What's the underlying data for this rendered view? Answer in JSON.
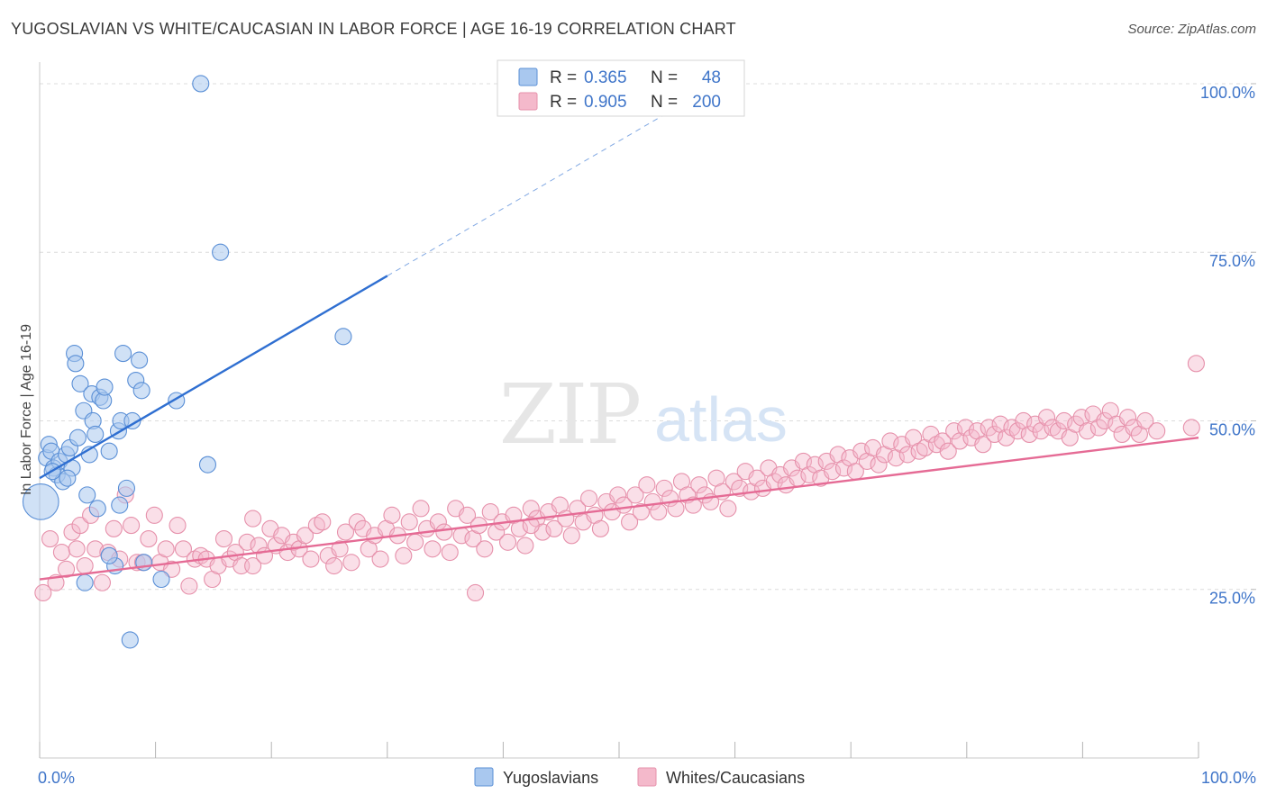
{
  "title": "YUGOSLAVIAN VS WHITE/CAUCASIAN IN LABOR FORCE | AGE 16-19 CORRELATION CHART",
  "source": "Source: ZipAtlas.com",
  "watermark": {
    "zip": "ZIP",
    "atlas": "atlas"
  },
  "colors": {
    "blue_fill": "#a9c8ef",
    "blue_stroke": "#5a8fd6",
    "blue_line": "#2f6fd1",
    "pink_fill": "#f4b9cb",
    "pink_stroke": "#e691ab",
    "pink_line": "#e56b95",
    "value_text": "#3f75c9",
    "grid": "#dcdcdc"
  },
  "legend_stats": [
    {
      "r_label": "R =",
      "r_value": "0.365",
      "n_label": "N =",
      "n_value": "48",
      "series": "Yugoslavians"
    },
    {
      "r_label": "R =",
      "r_value": "0.905",
      "n_label": "N =",
      "n_value": "200",
      "series": "Whites/Caucasians"
    }
  ],
  "chart_data": {
    "type": "scatter",
    "title": "YUGOSLAVIAN VS WHITE/CAUCASIAN IN LABOR FORCE | AGE 16-19 CORRELATION CHART",
    "xlabel": "",
    "ylabel": "In Labor Force | Age 16-19",
    "xlim": [
      0,
      100
    ],
    "ylim": [
      0,
      104
    ],
    "x_tick_labels": [
      {
        "value": 0,
        "label": "0.0%"
      },
      {
        "value": 100,
        "label": "100.0%"
      }
    ],
    "y_tick_labels": [
      {
        "value": 25,
        "label": "25.0%"
      },
      {
        "value": 50,
        "label": "50.0%"
      },
      {
        "value": 75,
        "label": "75.0%"
      },
      {
        "value": 100,
        "label": "100.0%"
      }
    ],
    "grid": true,
    "legend_position": "bottom-center",
    "series": [
      {
        "name": "Yugoslavians",
        "color": "#a9c8ef",
        "trend": {
          "x0": 0,
          "y0": 41.5,
          "x1": 30,
          "y1": 71.5,
          "dashed_to_x": 54
        },
        "points": [
          [
            0.1,
            38,
            22
          ],
          [
            0.6,
            44.5,
            10
          ],
          [
            0.8,
            46.5,
            10
          ],
          [
            1.0,
            45.5,
            10
          ],
          [
            1.2,
            43,
            10
          ],
          [
            1.5,
            42,
            10
          ],
          [
            1.7,
            44,
            10
          ],
          [
            2.0,
            41,
            10
          ],
          [
            2.3,
            45,
            10
          ],
          [
            2.6,
            46,
            10
          ],
          [
            2.8,
            43,
            10
          ],
          [
            3.3,
            47.5,
            10
          ],
          [
            3.5,
            55.5,
            10
          ],
          [
            3.8,
            51.5,
            10
          ],
          [
            4.1,
            39,
            10
          ],
          [
            4.3,
            45,
            10
          ],
          [
            4.5,
            54,
            10
          ],
          [
            4.6,
            50,
            10
          ],
          [
            4.8,
            48,
            10
          ],
          [
            5.2,
            53.5,
            10
          ],
          [
            5.5,
            53,
            10
          ],
          [
            5.6,
            55,
            10
          ],
          [
            6.0,
            45.5,
            10
          ],
          [
            6.5,
            28.5,
            10
          ],
          [
            6.8,
            48.5,
            10
          ],
          [
            6.9,
            37.5,
            10
          ],
          [
            7.0,
            50,
            10
          ],
          [
            7.2,
            60,
            10
          ],
          [
            7.5,
            40,
            10
          ],
          [
            7.8,
            17.5,
            10
          ],
          [
            8.0,
            50,
            10
          ],
          [
            8.3,
            56,
            10
          ],
          [
            8.6,
            59,
            10
          ],
          [
            8.8,
            54.5,
            10
          ],
          [
            9.0,
            29,
            10
          ],
          [
            3.0,
            60,
            10
          ],
          [
            3.1,
            58.5,
            10
          ],
          [
            6.0,
            30,
            10
          ],
          [
            5.0,
            37,
            10
          ],
          [
            3.9,
            26,
            10
          ],
          [
            10.5,
            26.5,
            10
          ],
          [
            11.8,
            53,
            10
          ],
          [
            13.9,
            100,
            10
          ],
          [
            14.5,
            43.5,
            10
          ],
          [
            15.6,
            75,
            10
          ],
          [
            26.2,
            62.5,
            10
          ],
          [
            1.1,
            42.5,
            10
          ],
          [
            2.4,
            41.5,
            10
          ]
        ]
      },
      {
        "name": "Whites/Caucasians",
        "color": "#f4b9cb",
        "trend": {
          "x0": 0,
          "y0": 26.5,
          "x1": 100,
          "y1": 47.5
        },
        "points": [
          [
            0.3,
            24.5
          ],
          [
            0.9,
            32.5
          ],
          [
            1.4,
            26
          ],
          [
            1.9,
            30.5
          ],
          [
            2.3,
            28
          ],
          [
            2.8,
            33.5
          ],
          [
            3.2,
            31
          ],
          [
            3.5,
            34.5
          ],
          [
            3.9,
            28.5
          ],
          [
            4.4,
            36
          ],
          [
            4.8,
            31
          ],
          [
            5.4,
            26
          ],
          [
            5.9,
            30.5
          ],
          [
            6.4,
            34
          ],
          [
            6.9,
            29.5
          ],
          [
            7.4,
            39
          ],
          [
            7.9,
            34.5
          ],
          [
            8.4,
            29
          ],
          [
            8.9,
            29
          ],
          [
            9.4,
            32.5
          ],
          [
            9.9,
            36
          ],
          [
            10.4,
            29
          ],
          [
            10.9,
            31
          ],
          [
            11.4,
            28
          ],
          [
            11.9,
            34.5
          ],
          [
            12.4,
            31
          ],
          [
            12.9,
            25.5
          ],
          [
            13.4,
            29.5
          ],
          [
            13.9,
            30
          ],
          [
            14.4,
            29.5
          ],
          [
            14.9,
            26.5
          ],
          [
            15.4,
            28.5
          ],
          [
            15.9,
            32.5
          ],
          [
            16.4,
            29.5
          ],
          [
            16.9,
            30.5
          ],
          [
            17.4,
            28.5
          ],
          [
            17.9,
            32
          ],
          [
            18.4,
            28.5
          ],
          [
            18.9,
            31.5
          ],
          [
            19.4,
            30
          ],
          [
            19.9,
            34
          ],
          [
            20.4,
            31.5
          ],
          [
            20.9,
            33
          ],
          [
            21.4,
            30.5
          ],
          [
            21.9,
            32
          ],
          [
            22.4,
            31
          ],
          [
            22.9,
            33
          ],
          [
            23.4,
            29.5
          ],
          [
            23.9,
            34.5
          ],
          [
            24.4,
            35
          ],
          [
            24.9,
            30
          ],
          [
            25.4,
            28.5
          ],
          [
            25.9,
            31
          ],
          [
            26.4,
            33.5
          ],
          [
            26.9,
            29
          ],
          [
            27.4,
            35
          ],
          [
            27.9,
            34
          ],
          [
            28.4,
            31
          ],
          [
            28.9,
            33
          ],
          [
            29.4,
            29.5
          ],
          [
            29.9,
            34
          ],
          [
            30.4,
            36
          ],
          [
            30.9,
            33
          ],
          [
            31.4,
            30
          ],
          [
            31.9,
            35
          ],
          [
            32.4,
            32
          ],
          [
            32.9,
            37
          ],
          [
            33.4,
            34
          ],
          [
            33.9,
            31
          ],
          [
            34.4,
            35
          ],
          [
            34.9,
            33.5
          ],
          [
            35.4,
            30.5
          ],
          [
            35.9,
            37
          ],
          [
            36.4,
            33
          ],
          [
            36.9,
            36
          ],
          [
            37.4,
            32.5
          ],
          [
            37.9,
            34.5
          ],
          [
            38.4,
            31
          ],
          [
            38.9,
            36.5
          ],
          [
            39.4,
            33.5
          ],
          [
            39.9,
            35
          ],
          [
            40.4,
            32
          ],
          [
            40.9,
            36
          ],
          [
            41.4,
            34
          ],
          [
            41.9,
            31.5
          ],
          [
            42.4,
            37
          ],
          [
            42.9,
            35.5
          ],
          [
            43.4,
            33.5
          ],
          [
            43.9,
            36.5
          ],
          [
            44.4,
            34
          ],
          [
            44.9,
            37.5
          ],
          [
            45.4,
            35.5
          ],
          [
            45.9,
            33
          ],
          [
            46.4,
            37
          ],
          [
            46.9,
            35
          ],
          [
            47.4,
            38.5
          ],
          [
            47.9,
            36
          ],
          [
            48.4,
            34
          ],
          [
            48.9,
            38
          ],
          [
            49.4,
            36.5
          ],
          [
            49.9,
            39
          ],
          [
            50.4,
            37.5
          ],
          [
            50.9,
            35
          ],
          [
            51.4,
            39
          ],
          [
            51.9,
            36.5
          ],
          [
            52.4,
            40.5
          ],
          [
            52.9,
            38
          ],
          [
            53.4,
            36.5
          ],
          [
            53.9,
            40
          ],
          [
            54.4,
            38.5
          ],
          [
            54.9,
            37
          ],
          [
            55.4,
            41
          ],
          [
            55.9,
            39
          ],
          [
            56.4,
            37.5
          ],
          [
            56.9,
            40.5
          ],
          [
            57.4,
            39
          ],
          [
            57.9,
            38
          ],
          [
            58.4,
            41.5
          ],
          [
            58.9,
            39.5
          ],
          [
            59.4,
            37
          ],
          [
            59.9,
            41
          ],
          [
            60.4,
            40
          ],
          [
            60.9,
            42.5
          ],
          [
            61.4,
            39.5
          ],
          [
            61.9,
            41.5
          ],
          [
            62.4,
            40
          ],
          [
            62.9,
            43
          ],
          [
            63.4,
            41
          ],
          [
            63.9,
            42
          ],
          [
            64.4,
            40.5
          ],
          [
            64.9,
            43
          ],
          [
            65.4,
            41.5
          ],
          [
            65.9,
            44
          ],
          [
            66.4,
            42
          ],
          [
            66.9,
            43.5
          ],
          [
            67.4,
            41.5
          ],
          [
            67.9,
            44
          ],
          [
            68.4,
            42.5
          ],
          [
            68.9,
            45
          ],
          [
            69.4,
            43
          ],
          [
            69.9,
            44.5
          ],
          [
            70.4,
            42.5
          ],
          [
            70.9,
            45.5
          ],
          [
            71.4,
            44
          ],
          [
            71.9,
            46
          ],
          [
            72.4,
            43.5
          ],
          [
            72.9,
            45
          ],
          [
            73.4,
            47
          ],
          [
            73.9,
            44.5
          ],
          [
            74.4,
            46.5
          ],
          [
            74.9,
            45
          ],
          [
            75.4,
            47.5
          ],
          [
            75.9,
            45.5
          ],
          [
            76.4,
            46
          ],
          [
            76.9,
            48
          ],
          [
            77.4,
            46.5
          ],
          [
            77.9,
            47
          ],
          [
            78.4,
            45.5
          ],
          [
            78.9,
            48.5
          ],
          [
            79.4,
            47
          ],
          [
            79.9,
            49
          ],
          [
            80.4,
            47.5
          ],
          [
            80.9,
            48.5
          ],
          [
            81.4,
            46.5
          ],
          [
            81.9,
            49
          ],
          [
            82.4,
            48
          ],
          [
            82.9,
            49.5
          ],
          [
            83.4,
            47.5
          ],
          [
            83.9,
            49
          ],
          [
            84.4,
            48.5
          ],
          [
            84.9,
            50
          ],
          [
            85.4,
            48
          ],
          [
            85.9,
            49.5
          ],
          [
            86.4,
            48.5
          ],
          [
            86.9,
            50.5
          ],
          [
            87.4,
            49
          ],
          [
            87.9,
            48.5
          ],
          [
            88.4,
            50
          ],
          [
            88.9,
            47.5
          ],
          [
            89.4,
            49.5
          ],
          [
            89.9,
            50.5
          ],
          [
            90.4,
            48.5
          ],
          [
            90.9,
            51
          ],
          [
            91.4,
            49
          ],
          [
            91.9,
            50
          ],
          [
            92.4,
            51.5
          ],
          [
            92.9,
            49.5
          ],
          [
            93.4,
            48
          ],
          [
            93.9,
            50.5
          ],
          [
            94.4,
            49
          ],
          [
            94.9,
            48
          ],
          [
            95.4,
            50
          ],
          [
            96.4,
            48.5
          ],
          [
            99.4,
            49
          ],
          [
            99.8,
            58.5
          ],
          [
            37.6,
            24.5
          ],
          [
            42.4,
            34.5
          ],
          [
            18.4,
            35.5
          ]
        ]
      }
    ]
  }
}
